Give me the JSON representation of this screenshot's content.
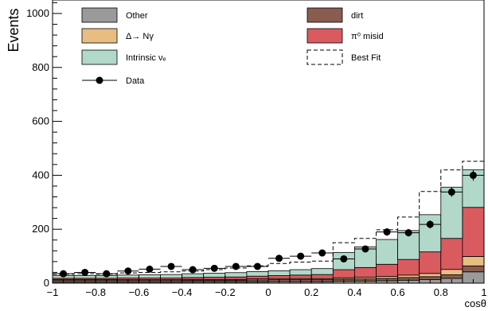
{
  "chart_data": {
    "type": "histogram-stacked",
    "ylabel": "Events",
    "xlabel": "cosθ",
    "xlim": [
      -1,
      1
    ],
    "ylim": [
      0,
      1050
    ],
    "x_ticks": [
      "−1",
      "−0.8",
      "−0.6",
      "−0.4",
      "−0.2",
      "0",
      "0.2",
      "0.4",
      "0.6",
      "0.8",
      "1"
    ],
    "x_tick_values": [
      -1,
      -0.8,
      -0.6,
      -0.4,
      -0.2,
      0,
      0.2,
      0.4,
      0.6,
      0.8,
      1
    ],
    "y_ticks": [
      "0",
      "200",
      "400",
      "600",
      "800",
      "1000"
    ],
    "y_tick_values": [
      0,
      200,
      400,
      600,
      800,
      1000
    ],
    "bin_edges": [
      -1,
      -0.9,
      -0.8,
      -0.7,
      -0.6,
      -0.5,
      -0.4,
      -0.3,
      -0.2,
      -0.1,
      0,
      0.1,
      0.2,
      0.3,
      0.4,
      0.5,
      0.6,
      0.7,
      0.8,
      0.9,
      1
    ],
    "stacks": [
      {
        "key": "other",
        "values": [
          4,
          4,
          4,
          4,
          4,
          4,
          5,
          5,
          5,
          5,
          6,
          6,
          6,
          7,
          8,
          9,
          11,
          13,
          18,
          42
        ]
      },
      {
        "key": "dirt",
        "values": [
          6,
          6,
          6,
          6,
          6,
          6,
          6,
          6,
          6,
          7,
          7,
          7,
          7,
          8,
          8,
          9,
          10,
          11,
          13,
          22
        ]
      },
      {
        "key": "delta",
        "values": [
          3,
          3,
          3,
          3,
          3,
          3,
          3,
          3,
          3,
          4,
          4,
          4,
          4,
          5,
          6,
          7,
          9,
          12,
          20,
          35
        ]
      },
      {
        "key": "pi0",
        "values": [
          5,
          5,
          5,
          6,
          6,
          6,
          7,
          8,
          9,
          10,
          11,
          13,
          15,
          30,
          36,
          45,
          58,
          80,
          115,
          182
        ]
      },
      {
        "key": "nue",
        "values": [
          10,
          10,
          10,
          11,
          12,
          13,
          14,
          15,
          16,
          17,
          18,
          20,
          22,
          64,
          77,
          92,
          107,
          138,
          190,
          139
        ]
      }
    ],
    "best_fit": [
      33,
      35,
      33,
      38,
      40,
      42,
      45,
      50,
      56,
      64,
      73,
      78,
      82,
      150,
      166,
      198,
      245,
      340,
      420,
      452
    ],
    "data": {
      "x": [
        -0.95,
        -0.85,
        -0.75,
        -0.65,
        -0.55,
        -0.45,
        -0.35,
        -0.25,
        -0.15,
        -0.05,
        0.05,
        0.15,
        0.25,
        0.35,
        0.45,
        0.55,
        0.65,
        0.75,
        0.85,
        0.95
      ],
      "y": [
        35,
        40,
        35,
        45,
        52,
        62,
        50,
        55,
        62,
        62,
        92,
        100,
        112,
        90,
        127,
        190,
        187,
        218,
        338,
        400
      ],
      "err": [
        6,
        6,
        6,
        7,
        7,
        8,
        7,
        7,
        8,
        8,
        10,
        10,
        11,
        10,
        11,
        14,
        14,
        15,
        18,
        20
      ]
    },
    "legend": [
      {
        "key": "other",
        "label": "Other",
        "color": "#9a9a9a",
        "style": "box"
      },
      {
        "key": "dirt",
        "label": "dirt",
        "color": "#8a5c4f",
        "style": "box"
      },
      {
        "key": "delta",
        "label": "Δ→ Nγ",
        "color": "#e8bd82",
        "style": "box"
      },
      {
        "key": "pi0",
        "label": "π⁰ misid",
        "color": "#d95b60",
        "style": "box"
      },
      {
        "key": "nue",
        "label": "Intrinsic νₑ",
        "color": "#b1d8c9",
        "style": "box"
      },
      {
        "key": "bestfit",
        "label": "Best Fit",
        "color": "#000000",
        "style": "dashed"
      },
      {
        "key": "data",
        "label": "Data",
        "color": "#000000",
        "style": "marker"
      }
    ]
  }
}
